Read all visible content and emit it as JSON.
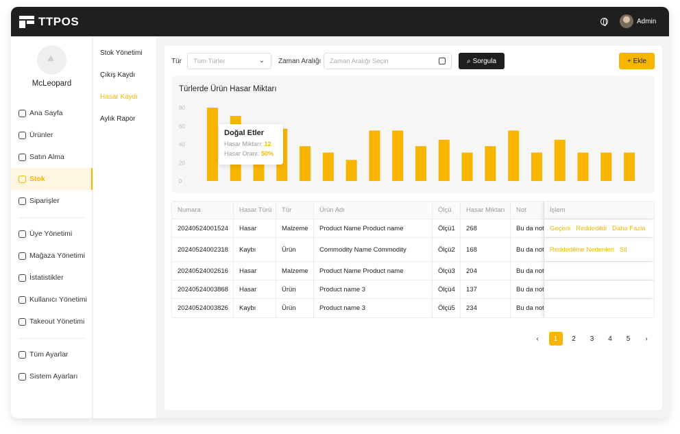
{
  "app": {
    "name": "TTPOS",
    "user": "Admin"
  },
  "profile": {
    "name": "McLeopard"
  },
  "sidebar": {
    "items": [
      {
        "label": "Ana Sayfa",
        "icon": "home-icon"
      },
      {
        "label": "Ürünler",
        "icon": "box-icon"
      },
      {
        "label": "Satın Alma",
        "icon": "cart-icon"
      },
      {
        "label": "Stok",
        "icon": "stock-icon",
        "active": true
      },
      {
        "label": "Siparişler",
        "icon": "orders-icon"
      },
      {
        "label": "Üye Yönetimi",
        "icon": "member-icon"
      },
      {
        "label": "Mağaza Yönetimi",
        "icon": "store-icon"
      },
      {
        "label": "İstatistikler",
        "icon": "stats-icon"
      },
      {
        "label": "Kullanıcı Yönetimi",
        "icon": "users-icon"
      },
      {
        "label": "Takeout Yönetimi",
        "icon": "takeout-icon"
      },
      {
        "label": "Tüm Ayarlar",
        "icon": "settings-all-icon"
      },
      {
        "label": "Sistem Ayarları",
        "icon": "system-settings-icon"
      }
    ]
  },
  "subnav": {
    "items": [
      {
        "label": "Stok Yönetimi"
      },
      {
        "label": "Çıkış Kaydı"
      },
      {
        "label": "Hasar Kaydı",
        "active": true
      },
      {
        "label": "Aylık Rapor"
      }
    ]
  },
  "filters": {
    "type_label": "Tür",
    "type_placeholder": "Tüm Türler",
    "time_label": "Zaman Aralığı",
    "time_placeholder": "Zaman Aralığı Seçin",
    "query_button": "Sorgula",
    "add_button": "+ Ekle"
  },
  "chart_data": {
    "type": "bar",
    "title": "Türlerde Ürün Hasar Miktarı",
    "ylim": [
      0,
      80
    ],
    "yticks": [
      0,
      20,
      40,
      60,
      80
    ],
    "values": [
      80,
      71,
      60,
      57,
      38,
      31,
      23,
      55,
      55,
      38,
      45,
      31,
      38,
      55,
      31,
      45,
      31,
      31,
      31
    ],
    "color": "#f7b500",
    "grid": false,
    "tooltip": {
      "title": "Doğal Etler",
      "rows": [
        {
          "label": "Hasar Miktarı:",
          "value": "12"
        },
        {
          "label": "Hasar Oranı:",
          "value": "50%"
        }
      ]
    }
  },
  "table": {
    "columns": [
      "Numara",
      "Hasar Türü",
      "Tür",
      "Ürün Adı",
      "Ölçü",
      "Hasar Miktarı",
      "Not",
      "İşlem"
    ],
    "rows": [
      {
        "id": "20240524001524",
        "damage": "Hasar",
        "type": "Malzeme",
        "product": "Product Name Product name",
        "unit": "Ölçü1",
        "qty": "268",
        "note": "Bu da nottur"
      },
      {
        "id": "20240524002318",
        "damage": "Kaybı",
        "type": "Ürün",
        "product": "Commodity Name Commodity",
        "unit": "Ölçü2",
        "qty": "168",
        "note": "Bu da nottur"
      },
      {
        "id": "20240524002616",
        "damage": "Hasar",
        "type": "Malzeme",
        "product": "Product Name Product name",
        "unit": "Ölçü3",
        "qty": "204",
        "note": "Bu da nottur"
      },
      {
        "id": "20240524003868",
        "damage": "Hasar",
        "type": "Ürün",
        "product": "Product name 3",
        "unit": "Ölçü4",
        "qty": "137",
        "note": "Bu da nottur"
      },
      {
        "id": "20240524003826",
        "damage": "Kaybı",
        "type": "Ürün",
        "product": "Product name 3",
        "unit": "Ölçü5",
        "qty": "234",
        "note": "Bu da nottur"
      }
    ],
    "actions_row1": [
      "Geçerli",
      "Reddedildi",
      "Daha Fazla"
    ],
    "actions_row2": [
      "Reddedilme Nedenleri",
      "Sil"
    ]
  },
  "pagination": {
    "prev": "‹",
    "pages": [
      "1",
      "2",
      "3",
      "4",
      "5"
    ],
    "next": "›",
    "current": "1"
  }
}
